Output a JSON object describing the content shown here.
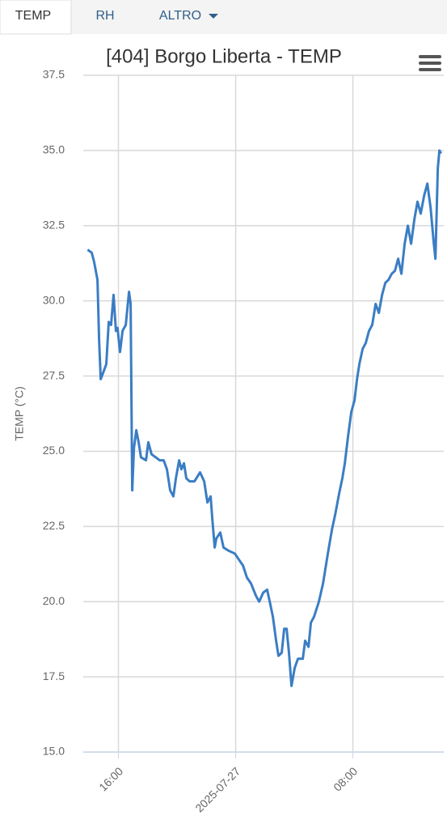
{
  "tabs": [
    "TEMP",
    "RH",
    "ALTRO"
  ],
  "chart_data": {
    "type": "line",
    "title": "[404] Borgo Liberta - TEMP",
    "y_label": "TEMP (°C)",
    "x": [
      -10.1,
      -9.82,
      -9.66,
      -9.43,
      -9.32,
      -9.21,
      -9.05,
      -8.83,
      -8.66,
      -8.5,
      -8.33,
      -8.17,
      -8.06,
      -7.89,
      -7.72,
      -7.5,
      -7.28,
      -7.17,
      -7.06,
      -6.94,
      -6.78,
      -6.62,
      -6.46,
      -6.12,
      -5.96,
      -5.74,
      -5.46,
      -5.19,
      -4.91,
      -4.69,
      -4.47,
      -4.25,
      -4.08,
      -3.86,
      -3.7,
      -3.53,
      -3.37,
      -3.14,
      -2.81,
      -2.43,
      -2.15,
      -1.93,
      -1.71,
      -1.6,
      -1.43,
      -1.32,
      -1.05,
      -0.83,
      -0.5,
      -0.06,
      0.22,
      0.5,
      0.77,
      1.05,
      1.38,
      1.6,
      1.88,
      2.15,
      2.37,
      2.54,
      2.76,
      2.92,
      3.14,
      3.31,
      3.48,
      3.64,
      3.81,
      4.03,
      4.25,
      4.41,
      4.58,
      4.74,
      4.97,
      5.13,
      5.35,
      5.68,
      5.96,
      6.29,
      6.57,
      6.79,
      7.06,
      7.28,
      7.45,
      7.67,
      7.89,
      8.11,
      8.28,
      8.44,
      8.66,
      8.88,
      9.1,
      9.32,
      9.55,
      9.77,
      9.99,
      10.21,
      10.43,
      10.65,
      10.87,
      11.09,
      11.31,
      11.53,
      11.75,
      11.97,
      12.19,
      12.41,
      12.63,
      12.86,
      13.08,
      13.3,
      13.52,
      13.63,
      13.79,
      13.9,
      14.01
    ],
    "series": [
      {
        "name": "TEMP",
        "color": "#3b7dc4",
        "values": [
          31.7,
          31.6,
          31.3,
          30.7,
          28.7,
          27.4,
          27.6,
          27.9,
          29.3,
          29.2,
          30.2,
          29.0,
          29.1,
          28.3,
          29.0,
          29.2,
          30.3,
          29.9,
          23.7,
          25.1,
          25.7,
          25.3,
          24.8,
          24.7,
          25.3,
          24.9,
          24.8,
          24.7,
          24.7,
          24.4,
          23.7,
          23.5,
          24.1,
          24.7,
          24.4,
          24.6,
          24.1,
          24.0,
          24.0,
          24.3,
          24.0,
          23.3,
          23.5,
          22.8,
          21.8,
          22.1,
          22.3,
          21.8,
          21.7,
          21.6,
          21.4,
          21.2,
          20.8,
          20.6,
          20.2,
          20.0,
          20.3,
          20.4,
          19.9,
          19.5,
          18.7,
          18.2,
          18.3,
          19.1,
          19.1,
          18.3,
          17.2,
          17.8,
          18.1,
          18.1,
          18.1,
          18.7,
          18.5,
          19.3,
          19.5,
          20.0,
          20.6,
          21.6,
          22.4,
          22.9,
          23.6,
          24.1,
          24.6,
          25.5,
          26.3,
          26.7,
          27.4,
          27.9,
          28.4,
          28.6,
          29.0,
          29.2,
          29.9,
          29.6,
          30.2,
          30.6,
          30.7,
          30.9,
          31.0,
          31.4,
          30.9,
          31.9,
          32.5,
          31.9,
          32.7,
          33.3,
          32.9,
          33.5,
          33.9,
          33.1,
          31.9,
          31.4,
          34.4,
          35.0,
          34.9
        ]
      }
    ],
    "xlim": [
      -10.4,
      14.2
    ],
    "xticks": [
      {
        "value": -8,
        "label": "16:00"
      },
      {
        "value": 0,
        "label": "2025-07-27"
      },
      {
        "value": 8,
        "label": "08:00"
      }
    ],
    "ylim": [
      15,
      37.5
    ],
    "yticks": [
      {
        "value": 15,
        "label": "15.0"
      },
      17.5,
      {
        "value": 20,
        "label": "20.0"
      },
      22.5,
      {
        "value": 25,
        "label": "25.0"
      },
      27.5,
      {
        "value": 30,
        "label": "30.0"
      },
      32.5,
      {
        "value": 35,
        "label": "35.0"
      },
      37.5
    ],
    "grid": true
  }
}
